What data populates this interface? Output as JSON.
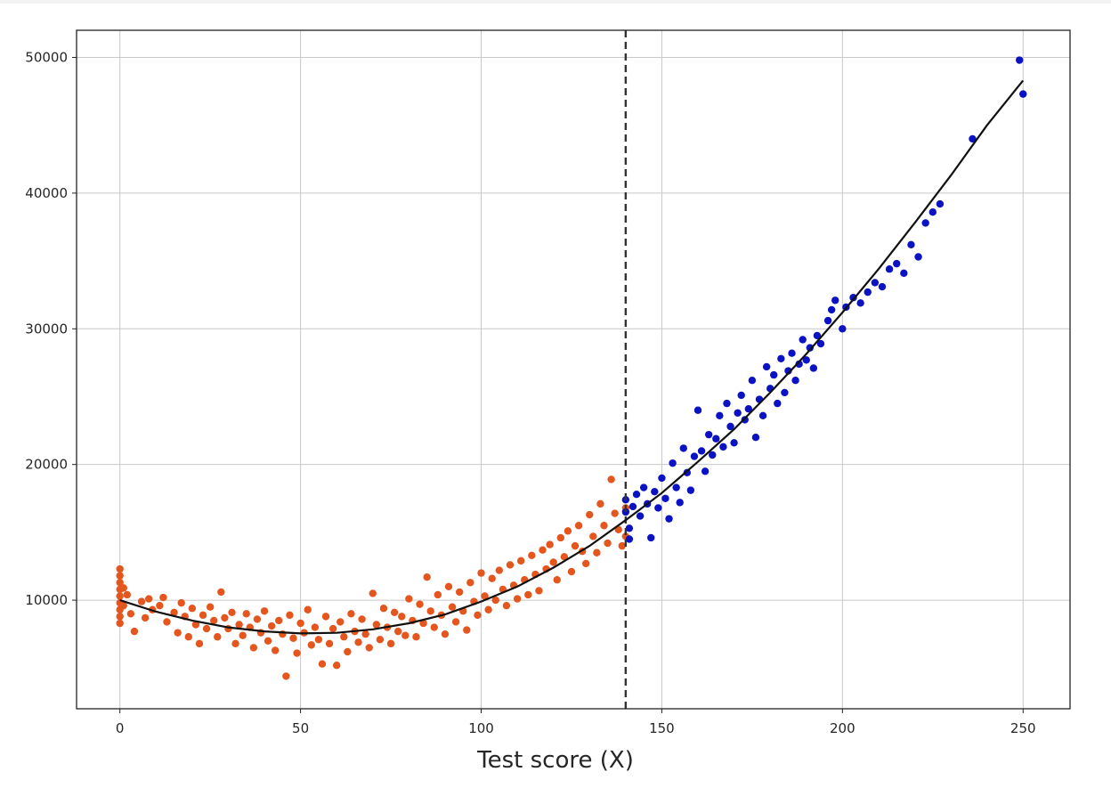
{
  "chart_data": {
    "type": "scatter",
    "title": "",
    "xlabel": "Test score (X)",
    "ylabel": "",
    "xlim": [
      -12,
      263
    ],
    "ylim": [
      2000,
      52000
    ],
    "x_ticks": [
      0,
      50,
      100,
      150,
      200,
      250
    ],
    "y_ticks": [
      10000,
      20000,
      30000,
      40000,
      50000
    ],
    "grid": true,
    "legend": "none",
    "cutoff_line": {
      "x": 140,
      "style": "dashed",
      "color": "#333333"
    },
    "fit_curve": {
      "color": "#111111",
      "points": [
        [
          0,
          10000
        ],
        [
          10,
          9150
        ],
        [
          20,
          8500
        ],
        [
          30,
          8000
        ],
        [
          40,
          7700
        ],
        [
          50,
          7550
        ],
        [
          60,
          7600
        ],
        [
          70,
          7850
        ],
        [
          80,
          8300
        ],
        [
          90,
          8950
        ],
        [
          100,
          9900
        ],
        [
          110,
          11000
        ],
        [
          120,
          12400
        ],
        [
          130,
          14000
        ],
        [
          140,
          15900
        ],
        [
          150,
          17900
        ],
        [
          160,
          20200
        ],
        [
          170,
          22600
        ],
        [
          180,
          25300
        ],
        [
          190,
          28150
        ],
        [
          200,
          31200
        ],
        [
          210,
          34400
        ],
        [
          220,
          37800
        ],
        [
          230,
          41300
        ],
        [
          240,
          45000
        ],
        [
          250,
          48300
        ]
      ]
    },
    "series": [
      {
        "color": "#e4561d",
        "points": [
          [
            0,
            12300
          ],
          [
            0,
            11800
          ],
          [
            0,
            11300
          ],
          [
            0,
            10800
          ],
          [
            0,
            10300
          ],
          [
            0,
            9800
          ],
          [
            0,
            9300
          ],
          [
            0,
            8800
          ],
          [
            0,
            8300
          ],
          [
            1,
            10900
          ],
          [
            1,
            9600
          ],
          [
            2,
            10400
          ],
          [
            3,
            9000
          ],
          [
            4,
            7700
          ],
          [
            6,
            9900
          ],
          [
            7,
            8700
          ],
          [
            8,
            10100
          ],
          [
            9,
            9300
          ],
          [
            11,
            9600
          ],
          [
            12,
            10200
          ],
          [
            13,
            8400
          ],
          [
            15,
            9100
          ],
          [
            16,
            7600
          ],
          [
            17,
            9800
          ],
          [
            18,
            8800
          ],
          [
            19,
            7300
          ],
          [
            20,
            9400
          ],
          [
            21,
            8200
          ],
          [
            22,
            6800
          ],
          [
            23,
            8900
          ],
          [
            24,
            7900
          ],
          [
            25,
            9500
          ],
          [
            26,
            8500
          ],
          [
            27,
            7300
          ],
          [
            28,
            10600
          ],
          [
            29,
            8700
          ],
          [
            30,
            7900
          ],
          [
            31,
            9100
          ],
          [
            32,
            6800
          ],
          [
            33,
            8200
          ],
          [
            34,
            7400
          ],
          [
            35,
            9000
          ],
          [
            36,
            8000
          ],
          [
            37,
            6500
          ],
          [
            38,
            8600
          ],
          [
            39,
            7600
          ],
          [
            40,
            9200
          ],
          [
            41,
            7000
          ],
          [
            42,
            8100
          ],
          [
            43,
            6300
          ],
          [
            44,
            8500
          ],
          [
            45,
            7500
          ],
          [
            46,
            4400
          ],
          [
            47,
            8900
          ],
          [
            48,
            7200
          ],
          [
            49,
            6100
          ],
          [
            50,
            8300
          ],
          [
            51,
            7600
          ],
          [
            52,
            9300
          ],
          [
            53,
            6700
          ],
          [
            54,
            8000
          ],
          [
            55,
            7100
          ],
          [
            56,
            5300
          ],
          [
            57,
            8800
          ],
          [
            58,
            6800
          ],
          [
            59,
            7900
          ],
          [
            60,
            5200
          ],
          [
            61,
            8400
          ],
          [
            62,
            7300
          ],
          [
            63,
            6200
          ],
          [
            64,
            9000
          ],
          [
            65,
            7700
          ],
          [
            66,
            6900
          ],
          [
            67,
            8600
          ],
          [
            68,
            7500
          ],
          [
            69,
            6500
          ],
          [
            70,
            10500
          ],
          [
            71,
            8200
          ],
          [
            72,
            7100
          ],
          [
            73,
            9400
          ],
          [
            74,
            8000
          ],
          [
            75,
            6800
          ],
          [
            76,
            9100
          ],
          [
            77,
            7700
          ],
          [
            78,
            8800
          ],
          [
            79,
            7400
          ],
          [
            80,
            10100
          ],
          [
            81,
            8500
          ],
          [
            82,
            7300
          ],
          [
            83,
            9700
          ],
          [
            84,
            8300
          ],
          [
            85,
            11700
          ],
          [
            86,
            9200
          ],
          [
            87,
            8000
          ],
          [
            88,
            10400
          ],
          [
            89,
            8900
          ],
          [
            90,
            7500
          ],
          [
            91,
            11000
          ],
          [
            92,
            9500
          ],
          [
            93,
            8400
          ],
          [
            94,
            10600
          ],
          [
            95,
            9200
          ],
          [
            96,
            7800
          ],
          [
            97,
            11300
          ],
          [
            98,
            9900
          ],
          [
            99,
            8900
          ],
          [
            100,
            12000
          ],
          [
            101,
            10300
          ],
          [
            102,
            9300
          ],
          [
            103,
            11600
          ],
          [
            104,
            10000
          ],
          [
            105,
            12200
          ],
          [
            106,
            10800
          ],
          [
            107,
            9600
          ],
          [
            108,
            12600
          ],
          [
            109,
            11100
          ],
          [
            110,
            10100
          ],
          [
            111,
            12900
          ],
          [
            112,
            11500
          ],
          [
            113,
            10400
          ],
          [
            114,
            13300
          ],
          [
            115,
            11900
          ],
          [
            116,
            10700
          ],
          [
            117,
            13700
          ],
          [
            118,
            12300
          ],
          [
            119,
            14100
          ],
          [
            120,
            12800
          ],
          [
            121,
            11500
          ],
          [
            122,
            14600
          ],
          [
            123,
            13200
          ],
          [
            124,
            15100
          ],
          [
            125,
            12100
          ],
          [
            126,
            14000
          ],
          [
            127,
            15500
          ],
          [
            128,
            13600
          ],
          [
            129,
            12700
          ],
          [
            130,
            16300
          ],
          [
            131,
            14700
          ],
          [
            132,
            13500
          ],
          [
            133,
            17100
          ],
          [
            134,
            15500
          ],
          [
            135,
            14200
          ],
          [
            136,
            18900
          ],
          [
            137,
            16400
          ],
          [
            138,
            15200
          ],
          [
            139,
            14000
          ],
          [
            140,
            16800
          ],
          [
            140,
            14700
          ]
        ]
      },
      {
        "color": "#0b12c4",
        "points": [
          [
            140,
            17400
          ],
          [
            140,
            16500
          ],
          [
            141,
            15300
          ],
          [
            141,
            14500
          ],
          [
            142,
            16900
          ],
          [
            143,
            17800
          ],
          [
            144,
            16200
          ],
          [
            145,
            18300
          ],
          [
            146,
            17100
          ],
          [
            147,
            14600
          ],
          [
            148,
            18000
          ],
          [
            149,
            16800
          ],
          [
            150,
            19000
          ],
          [
            151,
            17500
          ],
          [
            152,
            16000
          ],
          [
            153,
            20100
          ],
          [
            154,
            18300
          ],
          [
            155,
            17200
          ],
          [
            156,
            21200
          ],
          [
            157,
            19400
          ],
          [
            158,
            18100
          ],
          [
            159,
            20600
          ],
          [
            160,
            24000
          ],
          [
            161,
            21000
          ],
          [
            162,
            19500
          ],
          [
            163,
            22200
          ],
          [
            164,
            20700
          ],
          [
            165,
            21900
          ],
          [
            166,
            23600
          ],
          [
            167,
            21300
          ],
          [
            168,
            24500
          ],
          [
            169,
            22800
          ],
          [
            170,
            21600
          ],
          [
            171,
            23800
          ],
          [
            172,
            25100
          ],
          [
            173,
            23300
          ],
          [
            174,
            24100
          ],
          [
            175,
            26200
          ],
          [
            176,
            22000
          ],
          [
            177,
            24800
          ],
          [
            178,
            23600
          ],
          [
            179,
            27200
          ],
          [
            180,
            25600
          ],
          [
            181,
            26600
          ],
          [
            182,
            24500
          ],
          [
            183,
            27800
          ],
          [
            184,
            25300
          ],
          [
            185,
            26900
          ],
          [
            186,
            28200
          ],
          [
            187,
            26200
          ],
          [
            188,
            27400
          ],
          [
            189,
            29200
          ],
          [
            190,
            27700
          ],
          [
            191,
            28600
          ],
          [
            192,
            27100
          ],
          [
            193,
            29500
          ],
          [
            194,
            28900
          ],
          [
            196,
            30600
          ],
          [
            197,
            31400
          ],
          [
            198,
            32100
          ],
          [
            200,
            30000
          ],
          [
            201,
            31600
          ],
          [
            203,
            32300
          ],
          [
            205,
            31900
          ],
          [
            207,
            32700
          ],
          [
            209,
            33400
          ],
          [
            211,
            33100
          ],
          [
            213,
            34400
          ],
          [
            215,
            34800
          ],
          [
            217,
            34100
          ],
          [
            219,
            36200
          ],
          [
            221,
            35300
          ],
          [
            223,
            37800
          ],
          [
            225,
            38600
          ],
          [
            227,
            39200
          ],
          [
            236,
            44000
          ],
          [
            249,
            49800
          ],
          [
            250,
            47300
          ]
        ]
      }
    ]
  }
}
